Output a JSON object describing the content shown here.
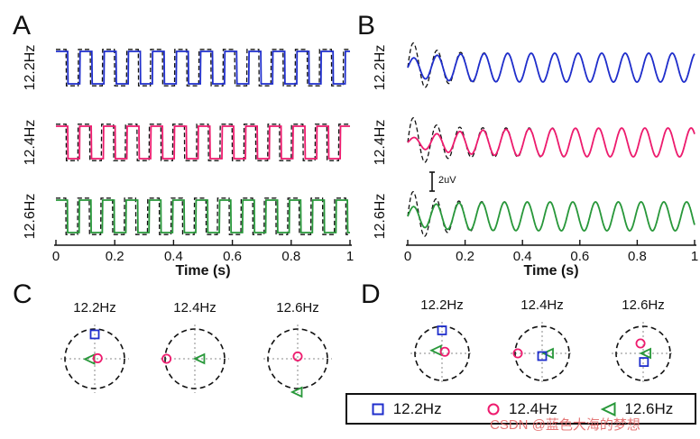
{
  "watermark": "CSDN @蓝色大海的梦想",
  "colors": {
    "blue": "#1f2ecc",
    "pink": "#ee1b6e",
    "green": "#28983a",
    "reference": "#111111"
  },
  "legend": {
    "items": [
      {
        "shape": "square",
        "color": "blue",
        "label": "12.2Hz"
      },
      {
        "shape": "circle",
        "color": "pink",
        "label": "12.4Hz"
      },
      {
        "shape": "triangle",
        "color": "green",
        "label": "12.6Hz"
      }
    ]
  },
  "chart_data": [
    {
      "id": "A",
      "type": "line",
      "waveform": "square",
      "xlabel": "Time (s)",
      "x_range": [
        0,
        1
      ],
      "x_ticks": [
        "0",
        "0.2",
        "0.4",
        "0.6",
        "0.8",
        "1"
      ],
      "reference_overlay": "dashed-black",
      "series": [
        {
          "name": "12.2Hz",
          "freq_hz": 12.2,
          "color": "blue"
        },
        {
          "name": "12.4Hz",
          "freq_hz": 12.4,
          "color": "pink"
        },
        {
          "name": "12.6Hz",
          "freq_hz": 12.6,
          "color": "green"
        }
      ]
    },
    {
      "id": "B",
      "type": "line",
      "waveform": "sine",
      "xlabel": "Time (s)",
      "x_range": [
        0,
        1
      ],
      "x_ticks": [
        "0",
        "0.2",
        "0.4",
        "0.6",
        "0.8",
        "1"
      ],
      "scale_bar_label": "2uV",
      "reference_overlay": "dashed-black",
      "series": [
        {
          "name": "12.2Hz",
          "freq_hz": 12.2,
          "color": "blue"
        },
        {
          "name": "12.4Hz",
          "freq_hz": 12.4,
          "color": "pink"
        },
        {
          "name": "12.6Hz",
          "freq_hz": 12.6,
          "color": "green"
        }
      ]
    },
    {
      "id": "C",
      "type": "scatter-polar",
      "subplots": [
        {
          "title": "12.2Hz",
          "points": [
            {
              "shape": "square",
              "color": "blue",
              "radius": 0.82,
              "angle_deg": 90
            },
            {
              "shape": "triangle",
              "color": "green",
              "radius": 0.15,
              "angle_deg": 185
            },
            {
              "shape": "circle",
              "color": "pink",
              "radius": 0.1,
              "angle_deg": 10
            }
          ]
        },
        {
          "title": "12.4Hz",
          "points": [
            {
              "shape": "circle",
              "color": "pink",
              "radius": 0.95,
              "angle_deg": 180
            },
            {
              "shape": "triangle",
              "color": "green",
              "radius": 0.18,
              "angle_deg": 0
            }
          ]
        },
        {
          "title": "12.6Hz",
          "points": [
            {
              "shape": "circle",
              "color": "pink",
              "radius": 0.08,
              "angle_deg": 90
            },
            {
              "shape": "triangle",
              "color": "green",
              "radius": 1.12,
              "angle_deg": 270
            }
          ]
        }
      ]
    },
    {
      "id": "D",
      "type": "scatter-polar",
      "subplots": [
        {
          "title": "12.2Hz",
          "points": [
            {
              "shape": "square",
              "color": "blue",
              "radius": 0.85,
              "angle_deg": 90
            },
            {
              "shape": "triangle",
              "color": "green",
              "radius": 0.22,
              "angle_deg": 150
            },
            {
              "shape": "circle",
              "color": "pink",
              "radius": 0.12,
              "angle_deg": 30
            }
          ]
        },
        {
          "title": "12.4Hz",
          "points": [
            {
              "shape": "circle",
              "color": "pink",
              "radius": 0.9,
              "angle_deg": 180
            },
            {
              "shape": "triangle",
              "color": "green",
              "radius": 0.25,
              "angle_deg": 0
            },
            {
              "shape": "square",
              "color": "blue",
              "radius": 0.1,
              "angle_deg": 270
            }
          ]
        },
        {
          "title": "12.6Hz",
          "points": [
            {
              "shape": "circle",
              "color": "pink",
              "radius": 0.38,
              "angle_deg": 105
            },
            {
              "shape": "square",
              "color": "blue",
              "radius": 0.32,
              "angle_deg": 275
            },
            {
              "shape": "triangle",
              "color": "green",
              "radius": 0.12,
              "angle_deg": 0
            }
          ]
        }
      ]
    }
  ]
}
